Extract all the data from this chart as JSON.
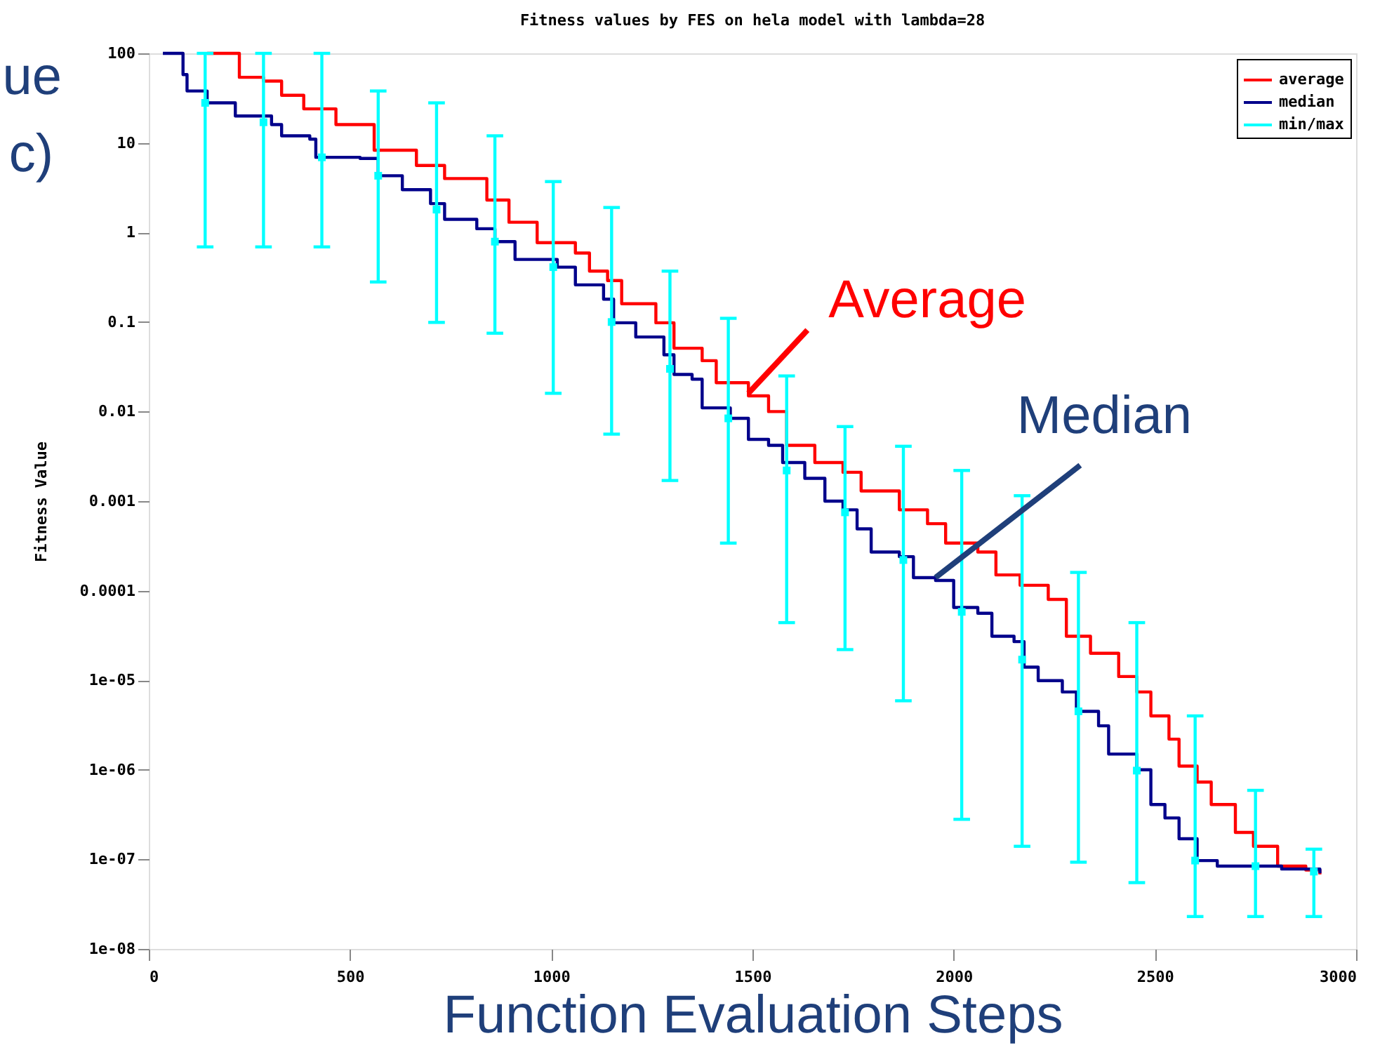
{
  "chart_data": {
    "type": "step",
    "title": "Fitness values by FES on hela model with lambda=28",
    "xlabel": "Function Evaluation Steps",
    "ylabel": "Fitness Value",
    "log": "y",
    "grid": false,
    "legend": "top right",
    "xlim": [
      0,
      3000
    ],
    "xticks": [
      0,
      500,
      1000,
      1500,
      2000,
      2500,
      3000
    ],
    "ylim": [
      1e-08,
      100
    ],
    "yticks": [
      {
        "value": 1e-08,
        "label": "1e-08"
      },
      {
        "value": 1e-07,
        "label": "1e-07"
      },
      {
        "value": 1e-06,
        "label": "1e-06"
      },
      {
        "value": 1e-05,
        "label": "1e-05"
      },
      0.0001,
      0.001,
      0.01,
      0.1,
      1,
      10,
      100
    ],
    "series": [
      {
        "name": "average",
        "color": "#ff0000",
        "x": [
          145,
          225,
          285,
          330,
          385,
          465,
          560,
          665,
          735,
          840,
          895,
          965,
          1060,
          1095,
          1140,
          1175,
          1260,
          1305,
          1375,
          1410,
          1490,
          1540,
          1585,
          1655,
          1725,
          1770,
          1865,
          1935,
          1980,
          2060,
          2105,
          2165,
          2235,
          2280,
          2340,
          2410,
          2455,
          2490,
          2535,
          2560,
          2605,
          2640,
          2700,
          2745,
          2805,
          2875,
          2910
        ],
        "values": [
          100,
          54,
          49,
          34,
          24,
          16,
          8.3,
          5.6,
          4.0,
          2.3,
          1.3,
          0.77,
          0.59,
          0.37,
          0.29,
          0.16,
          0.098,
          0.051,
          0.037,
          0.021,
          0.015,
          0.01,
          0.0042,
          0.0027,
          0.0021,
          0.0013,
          0.0008,
          0.00056,
          0.00034,
          0.00027,
          0.00015,
          0.000115,
          8e-05,
          3.1e-05,
          2e-05,
          1.1e-05,
          7.4e-06,
          4e-06,
          2.2e-06,
          1.1e-06,
          7.3e-07,
          4.1e-07,
          2e-07,
          1.4e-07,
          8.4e-08,
          7.6e-08,
          6.8e-08
        ]
      },
      {
        "name": "median",
        "color": "#00008b",
        "x": [
          35,
          85,
          95,
          145,
          215,
          305,
          330,
          400,
          415,
          525,
          570,
          630,
          700,
          735,
          815,
          860,
          910,
          1015,
          1060,
          1130,
          1155,
          1210,
          1280,
          1305,
          1350,
          1375,
          1445,
          1490,
          1540,
          1575,
          1630,
          1680,
          1725,
          1760,
          1795,
          1865,
          1900,
          1955,
          2000,
          2060,
          2095,
          2150,
          2175,
          2210,
          2270,
          2305,
          2360,
          2385,
          2455,
          2490,
          2525,
          2560,
          2605,
          2655,
          2770,
          2815,
          2910
        ],
        "values": [
          100,
          58,
          38,
          28,
          20,
          16,
          12,
          11,
          6.9,
          6.7,
          4.3,
          3.0,
          2.1,
          1.4,
          1.1,
          0.79,
          0.5,
          0.41,
          0.26,
          0.18,
          0.098,
          0.068,
          0.043,
          0.026,
          0.023,
          0.011,
          0.0084,
          0.0049,
          0.0042,
          0.0027,
          0.0018,
          0.001,
          0.0008,
          0.00049,
          0.00027,
          0.00024,
          0.00014,
          0.00013,
          6.5e-05,
          5.6e-05,
          3.1e-05,
          2.7e-05,
          1.4e-05,
          9.9e-06,
          7.4e-06,
          4.5e-06,
          3.1e-06,
          1.5e-06,
          1e-06,
          4.1e-07,
          2.9e-07,
          1.7e-07,
          9.7e-08,
          8.4e-08,
          8.4e-08,
          7.8e-08,
          7e-08
        ]
      },
      {
        "name": "min/max",
        "type": "scatter",
        "color": "#00ffff",
        "x": [
          140,
          285,
          430,
          570,
          715,
          860,
          1005,
          1150,
          1295,
          1440,
          1585,
          1730,
          1875,
          2020,
          2170,
          2310,
          2455,
          2600,
          2750,
          2895
        ],
        "values": [
          28,
          17,
          6.9,
          4.3,
          1.8,
          0.79,
          0.41,
          0.1,
          0.03,
          0.0084,
          0.0022,
          0.00075,
          0.00022,
          5.8e-05,
          1.7e-05,
          4.5e-06,
          9.8e-07,
          9.7e-08,
          8.4e-08,
          7.3e-08
        ],
        "errors": [
          [
            0.69,
            100
          ],
          [
            0.69,
            100
          ],
          [
            0.69,
            100
          ],
          [
            0.28,
            38
          ],
          [
            0.099,
            28
          ],
          [
            0.075,
            12
          ],
          [
            0.016,
            3.7
          ],
          [
            0.0056,
            1.9
          ],
          [
            0.0017,
            0.37
          ],
          [
            0.00034,
            0.11
          ],
          [
            4.4e-05,
            0.025
          ],
          [
            2.2e-05,
            0.0068
          ],
          [
            5.9e-06,
            0.0041
          ],
          [
            2.8e-07,
            0.0022
          ],
          [
            1.4e-07,
            0.00115
          ],
          [
            9.3e-08,
            0.00016
          ],
          [
            5.5e-08,
            4.4e-05
          ],
          [
            2.3e-08,
            4e-06
          ],
          [
            2.3e-08,
            5.9e-07
          ],
          [
            2.3e-08,
            1.3e-07
          ]
        ]
      }
    ],
    "annotations": [
      {
        "text": "Average",
        "x": 1490,
        "y": 0.016
      },
      {
        "text": "Median",
        "x": 1955,
        "y": 0.00014
      },
      "ue",
      "c)"
    ]
  }
}
